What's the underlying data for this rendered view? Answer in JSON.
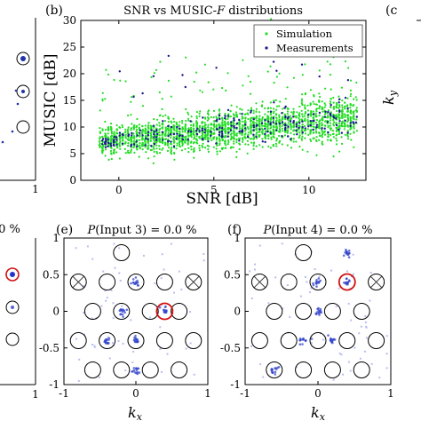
{
  "figure": {
    "panel_b": {
      "label": "(b)",
      "title": "SNR vs MUSIC-F distributions",
      "xlabel": "SNR [dB]",
      "ylabel": "MUSIC [dB]",
      "legend": [
        "Simulation",
        "Measurements"
      ]
    },
    "panel_c": {
      "label": "(c",
      "ylabel": "k_y"
    },
    "panel_d": {
      "title_fragment": ".0 %"
    },
    "panel_e": {
      "label": "(e)",
      "title": "P(Input 3) = 0.0 %",
      "xlabel": "k_x"
    },
    "panel_f": {
      "label": "(f)",
      "title": "P(Input 4) = 0.0 %",
      "xlabel": "k_x"
    },
    "left_fragment": {
      "tick": "1"
    }
  },
  "colors": {
    "simulation": "#22dd22",
    "measurements": "#1a1a8c",
    "ring": "#000000",
    "highlight_ring": "#d01010",
    "blob": "#3344cc",
    "noise": "#b8bef0"
  },
  "chart_data": [
    {
      "type": "scatter",
      "panel": "b",
      "title": "SNR vs MUSIC-F distributions",
      "xlabel": "SNR [dB]",
      "ylabel": "MUSIC [dB]",
      "xlim": [
        -2,
        13
      ],
      "ylim": [
        0,
        30
      ],
      "xticks": [
        0,
        5,
        10
      ],
      "yticks": [
        0,
        5,
        10,
        15,
        20,
        25,
        30
      ],
      "legend_position": "top-right",
      "series": [
        {
          "name": "Simulation",
          "color": "#22dd22",
          "x_range": [
            -1,
            12.5
          ],
          "y_center": 9.5,
          "y_spread": 3.5,
          "count": 2200
        },
        {
          "name": "Measurements",
          "color": "#1a1a8c",
          "x_range": [
            -1,
            12.5
          ],
          "y_center": 9,
          "y_spread": 2.5,
          "count": 260
        }
      ]
    },
    {
      "type": "scatter",
      "panel": "e",
      "title": "P(Input 3) = 0.0 %",
      "xlabel": "k_x",
      "xlim": [
        -1,
        1
      ],
      "ylim": [
        -1,
        1
      ],
      "xticks": [
        -1,
        0,
        1
      ],
      "xticklabels": [
        "-1",
        "0",
        "1"
      ],
      "yticks": [
        1,
        0.5,
        0,
        -0.5,
        -1
      ],
      "yticklabels": [
        "1",
        "0.5",
        "0",
        "-0.5",
        "-1"
      ],
      "rings": [
        [
          -0.2,
          0.8
        ],
        [
          -0.8,
          0.4
        ],
        [
          -0.4,
          0.4
        ],
        [
          0,
          0.4
        ],
        [
          0.4,
          0.4
        ],
        [
          0.8,
          0.4
        ],
        [
          -0.6,
          0
        ],
        [
          -0.2,
          0
        ],
        [
          0.2,
          0
        ],
        [
          0.6,
          0
        ],
        [
          -0.8,
          -0.4
        ],
        [
          -0.4,
          -0.4
        ],
        [
          0,
          -0.4
        ],
        [
          0.4,
          -0.4
        ],
        [
          0.8,
          -0.4
        ],
        [
          -0.6,
          -0.8
        ],
        [
          -0.2,
          -0.8
        ],
        [
          0.2,
          -0.8
        ],
        [
          0.6,
          -0.8
        ]
      ],
      "crossed_rings": [
        [
          -0.8,
          0.4
        ],
        [
          0.8,
          0.4
        ]
      ],
      "highlight_rings": [
        [
          0.4,
          0
        ]
      ],
      "blobs": [
        [
          0,
          0.4
        ],
        [
          0.4,
          0
        ],
        [
          -0.2,
          0
        ],
        [
          0,
          -0.4
        ],
        [
          -0.4,
          -0.4
        ],
        [
          0,
          -0.8
        ]
      ]
    },
    {
      "type": "scatter",
      "panel": "f",
      "title": "P(Input 4) = 0.0 %",
      "xlabel": "k_x",
      "xlim": [
        -1,
        1
      ],
      "ylim": [
        -1,
        1
      ],
      "xticks": [
        -1,
        0,
        1
      ],
      "xticklabels": [
        "-1",
        "0",
        "1"
      ],
      "yticks": [
        1,
        0.5,
        0,
        -0.5,
        -1
      ],
      "yticklabels": [
        "1",
        "0.5",
        "0",
        "-0.5",
        "-1"
      ],
      "rings": [
        [
          -0.2,
          0.8
        ],
        [
          -0.8,
          0.4
        ],
        [
          -0.4,
          0.4
        ],
        [
          0,
          0.4
        ],
        [
          0.4,
          0.4
        ],
        [
          0.8,
          0.4
        ],
        [
          -0.6,
          0
        ],
        [
          -0.2,
          0
        ],
        [
          0.2,
          0
        ],
        [
          0.6,
          0
        ],
        [
          -0.8,
          -0.4
        ],
        [
          -0.4,
          -0.4
        ],
        [
          0,
          -0.4
        ],
        [
          0.4,
          -0.4
        ],
        [
          0.8,
          -0.4
        ],
        [
          -0.6,
          -0.8
        ],
        [
          -0.2,
          -0.8
        ],
        [
          0.2,
          -0.8
        ],
        [
          0.6,
          -0.8
        ]
      ],
      "crossed_rings": [
        [
          -0.8,
          0.4
        ],
        [
          0.8,
          0.4
        ]
      ],
      "highlight_rings": [
        [
          0.4,
          0.4
        ]
      ],
      "blobs": [
        [
          0.4,
          0.4
        ],
        [
          0.4,
          0.8
        ],
        [
          0,
          0
        ],
        [
          -0.2,
          -0.4
        ],
        [
          0.2,
          -0.4
        ],
        [
          -0.6,
          -0.8
        ],
        [
          0,
          0.4
        ]
      ]
    }
  ]
}
